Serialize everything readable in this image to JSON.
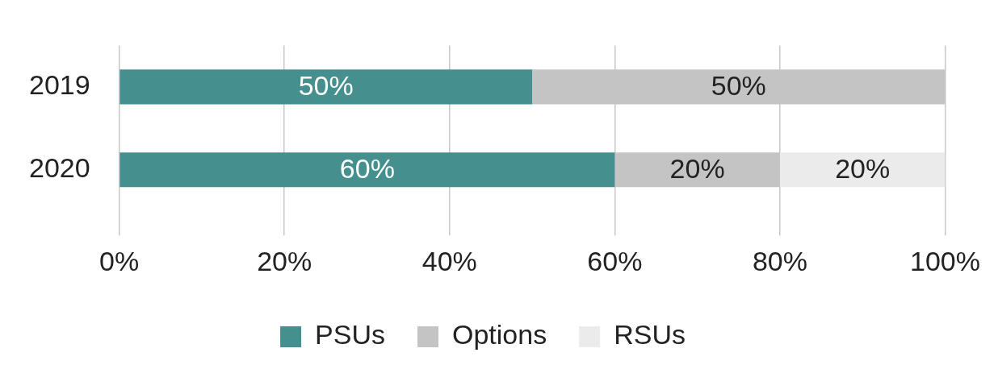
{
  "chart_data": {
    "type": "bar",
    "orientation": "horizontal",
    "stacked": true,
    "categories": [
      "2019",
      "2020"
    ],
    "series": [
      {
        "name": "PSUs",
        "color": "#468f8f",
        "values": [
          50,
          60
        ],
        "value_labels": [
          "50%",
          "60%"
        ]
      },
      {
        "name": "Options",
        "color": "#c4c4c4",
        "values": [
          50,
          20
        ],
        "value_labels": [
          "50%",
          "20%"
        ]
      },
      {
        "name": "RSUs",
        "color": "#ebebeb",
        "values": [
          null,
          20
        ],
        "value_labels": [
          null,
          "20%"
        ]
      }
    ],
    "xlim": [
      0,
      100
    ],
    "xticks": [
      {
        "value": 0,
        "label": "0%"
      },
      {
        "value": 20,
        "label": "20%"
      },
      {
        "value": 40,
        "label": "40%"
      },
      {
        "value": 60,
        "label": "60%"
      },
      {
        "value": 80,
        "label": "80%"
      },
      {
        "value": 100,
        "label": "100%"
      }
    ],
    "grid": "x",
    "legend": "bottom"
  }
}
